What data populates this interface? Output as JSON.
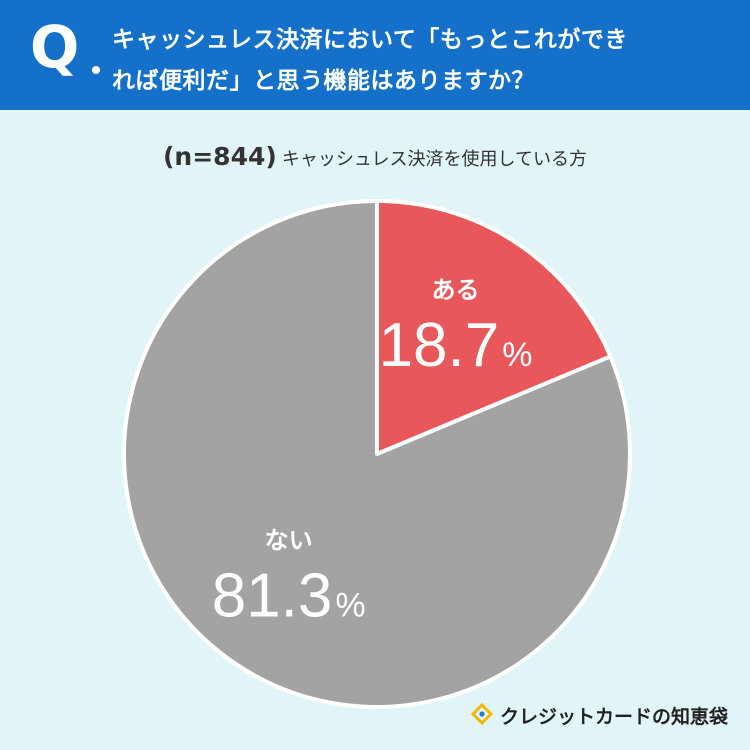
{
  "header": {
    "q_mark": "Q",
    "question_line1": "キャッシュレス決済において「もっとこれができ",
    "question_line2": "れば便利だ」と思う機能はありますか？"
  },
  "subtitle": {
    "n_label": "(n=844)",
    "label": "キャッシュレス決済を使用している方"
  },
  "chart_data": {
    "type": "pie",
    "title": "",
    "slices": [
      {
        "label": "ある",
        "value": 18.7,
        "display": "18.7",
        "unit": "%",
        "color": "#e8585a"
      },
      {
        "label": "ない",
        "value": 81.3,
        "display": "81.3",
        "unit": "%",
        "color": "#a3a3a3"
      }
    ]
  },
  "brand": {
    "name": "クレジットカードの知恵袋",
    "icon": "lightbulb-icon",
    "icon_color": "#f5b800"
  },
  "colors": {
    "header_bg": "#1470c8",
    "page_bg": "#e1f5f8"
  }
}
